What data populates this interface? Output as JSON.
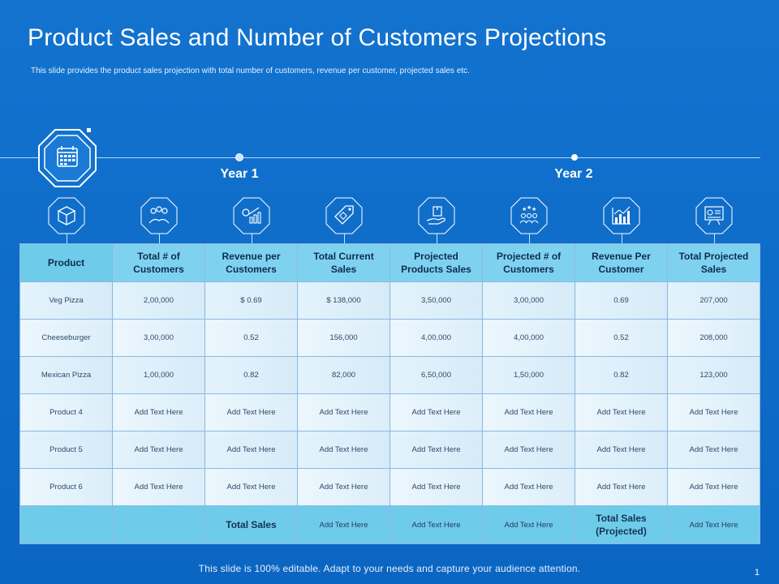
{
  "title": "Product Sales and Number of Customers Projections",
  "subtitle": "This slide provides the product sales projection with total number of customers, revenue per customer, projected sales etc.",
  "timeline": {
    "year1": "Year 1",
    "year2": "Year 2"
  },
  "icons": [
    "calendar-icon",
    "box-icon",
    "customers-icon",
    "revenue-chart-icon",
    "price-tag-icon",
    "product-hand-icon",
    "team-stars-icon",
    "growth-chart-icon",
    "presentation-board-icon"
  ],
  "table": {
    "headers": [
      "Product",
      "Total # of Customers",
      "Revenue per Customers",
      "Total Current Sales",
      "Projected Products Sales",
      "Projected # of Customers",
      "Revenue Per Customer",
      "Total Projected Sales"
    ],
    "rows": [
      [
        "Veg Pizza",
        "2,00,000",
        "$ 0.69",
        "$ 138,000",
        "3,50,000",
        "3,00,000",
        "0.69",
        "207,000"
      ],
      [
        "Cheeseburger",
        "3,00,000",
        "0.52",
        "156,000",
        "4,00,000",
        "4,00,000",
        "0.52",
        "208,000"
      ],
      [
        "Mexican Pizza",
        "1,00,000",
        "0.82",
        "82,000",
        "6,50,000",
        "1,50,000",
        "0.82",
        "123,000"
      ],
      [
        "Product 4",
        "Add Text Here",
        "Add Text Here",
        "Add Text Here",
        "Add Text Here",
        "Add Text Here",
        "Add Text Here",
        "Add Text Here"
      ],
      [
        "Product 5",
        "Add Text Here",
        "Add Text Here",
        "Add Text Here",
        "Add Text Here",
        "Add Text Here",
        "Add Text Here",
        "Add Text Here"
      ],
      [
        "Product 6",
        "Add Text Here",
        "Add Text Here",
        "Add Text Here",
        "Add Text Here",
        "Add Text Here",
        "Add Text Here",
        "Add Text Here"
      ]
    ],
    "footer": [
      "",
      "",
      "Total Sales",
      "Add Text Here",
      "Add Text Here",
      "Add Text Here",
      "Total Sales (Projected)",
      "Add Text Here"
    ]
  },
  "footer_note": "This slide is 100% editable. Adapt to your needs and capture your audience attention.",
  "page_number": "1",
  "colors": {
    "background": "#1273cf",
    "header_fill": "#7fd2ef",
    "cell_fill": "#e3f3fc"
  }
}
